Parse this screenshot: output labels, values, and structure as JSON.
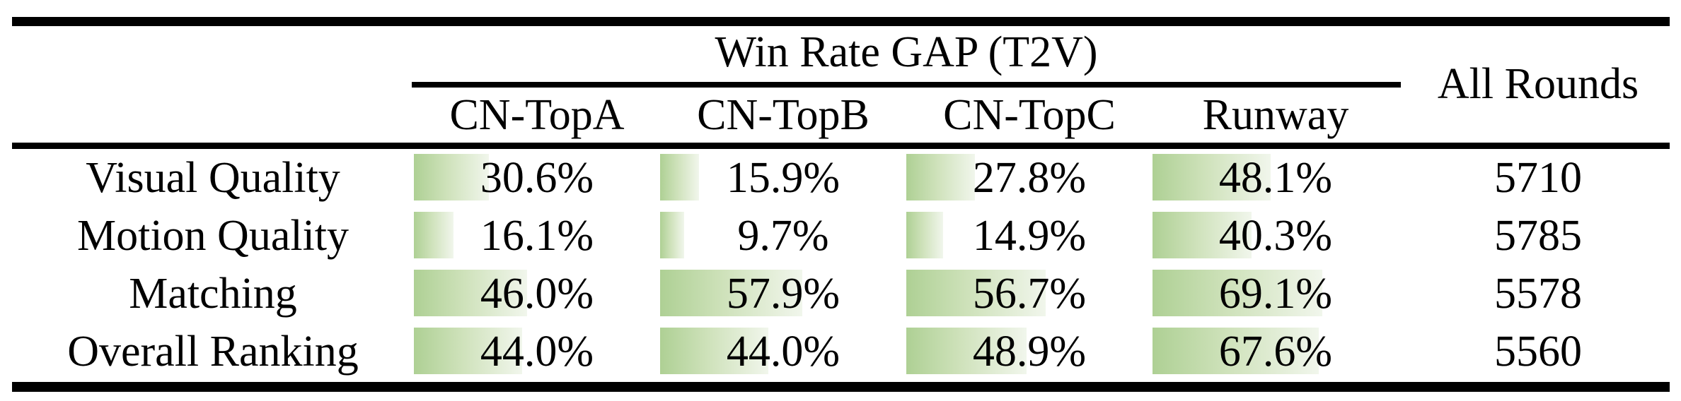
{
  "table": {
    "group_header": "Win Rate GAP (T2V)",
    "all_rounds_header": "All Rounds",
    "columns": [
      "CN-TopA",
      "CN-TopB",
      "CN-TopC",
      "Runway"
    ],
    "rows": [
      {
        "label": "Visual Quality",
        "values": [
          30.6,
          15.9,
          27.8,
          48.1
        ],
        "display": [
          "30.6%",
          "15.9%",
          "27.8%",
          "48.1%"
        ],
        "all_rounds": "5710"
      },
      {
        "label": "Motion Quality",
        "values": [
          16.1,
          9.7,
          14.9,
          40.3
        ],
        "display": [
          "16.1%",
          "9.7%",
          "14.9%",
          "40.3%"
        ],
        "all_rounds": "5785"
      },
      {
        "label": "Matching",
        "values": [
          46.0,
          57.9,
          56.7,
          69.1
        ],
        "display": [
          "46.0%",
          "57.9%",
          "56.7%",
          "69.1%"
        ],
        "all_rounds": "5578"
      },
      {
        "label": "Overall Ranking",
        "values": [
          44.0,
          44.0,
          48.9,
          67.6
        ],
        "display": [
          "44.0%",
          "44.0%",
          "48.9%",
          "67.6%"
        ],
        "all_rounds": "5560"
      }
    ],
    "bar_gradient": {
      "start": "#aed094",
      "mid": "#cfe2bb",
      "end": "#f1f6ec"
    },
    "rule_color": "#000000",
    "bar_scale_max": 100
  },
  "chart_data": {
    "type": "table",
    "title": "Win Rate GAP (T2V)",
    "columns": [
      "CN-TopA",
      "CN-TopB",
      "CN-TopC",
      "Runway",
      "All Rounds"
    ],
    "row_labels": [
      "Visual Quality",
      "Motion Quality",
      "Matching",
      "Overall Ranking"
    ],
    "series": [
      {
        "name": "CN-TopA",
        "values": [
          30.6,
          16.1,
          46.0,
          44.0
        ]
      },
      {
        "name": "CN-TopB",
        "values": [
          15.9,
          9.7,
          57.9,
          44.0
        ]
      },
      {
        "name": "CN-TopC",
        "values": [
          27.8,
          14.9,
          56.7,
          48.9
        ]
      },
      {
        "name": "Runway",
        "values": [
          48.1,
          40.3,
          69.1,
          67.6
        ]
      },
      {
        "name": "All Rounds",
        "values": [
          5710,
          5785,
          5578,
          5560
        ]
      }
    ],
    "layout": "green data bars behind percentages, bar width proportional to value (0-100% of cell width)"
  }
}
